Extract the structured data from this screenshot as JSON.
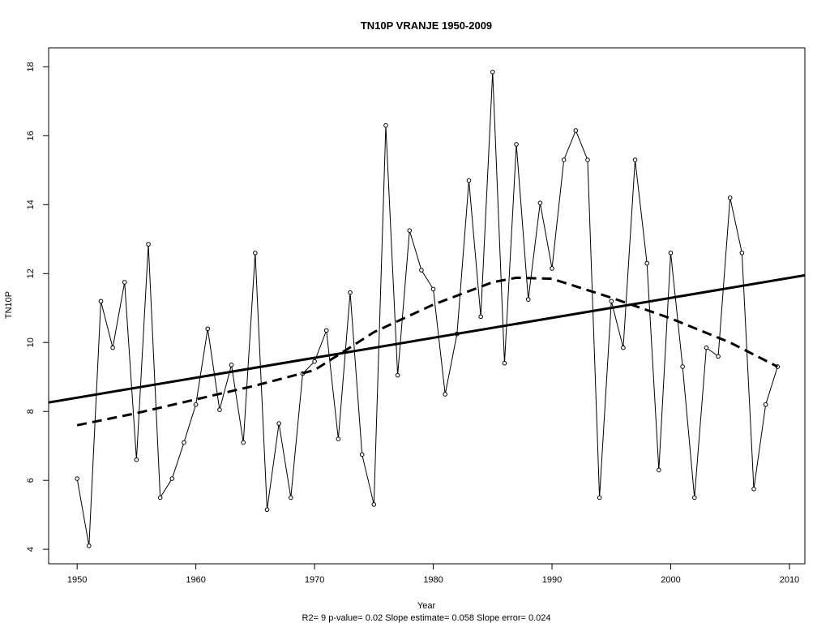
{
  "chart_data": {
    "type": "line",
    "title": "TN10P    VRANJE 1950-2009",
    "xlabel": "Year",
    "ylabel": "TN10P",
    "stats_line": "R2= 9  p-value= 0.02  Slope estimate= 0.058  Slope error= 0.024",
    "xlim": [
      1947.6,
      2011.3
    ],
    "ylim": [
      3.58,
      18.55
    ],
    "x_ticks": [
      1950,
      1960,
      1970,
      1980,
      1990,
      2000,
      2010
    ],
    "y_ticks": [
      4,
      6,
      8,
      10,
      12,
      14,
      16,
      18
    ],
    "grid": false,
    "series": [
      {
        "style": "line-with-points",
        "x": [
          1950,
          1951,
          1952,
          1953,
          1954,
          1955,
          1956,
          1957,
          1958,
          1959,
          1960,
          1961,
          1962,
          1963,
          1964,
          1965,
          1966,
          1967,
          1968,
          1969,
          1970,
          1971,
          1972,
          1973,
          1974,
          1975,
          1976,
          1977,
          1978,
          1979,
          1980,
          1981,
          1982,
          1983,
          1984,
          1985,
          1986,
          1987,
          1988,
          1989,
          1990,
          1991,
          1992,
          1993,
          1994,
          1995,
          1996,
          1997,
          1998,
          1999,
          2000,
          2001,
          2002,
          2003,
          2004,
          2005,
          2006,
          2007,
          2008,
          2009
        ],
        "values": [
          6.05,
          4.1,
          11.2,
          9.85,
          11.75,
          6.6,
          12.85,
          5.5,
          6.05,
          7.1,
          8.2,
          10.4,
          8.05,
          9.35,
          7.1,
          12.6,
          5.15,
          7.65,
          5.5,
          9.1,
          9.45,
          10.35,
          7.2,
          11.45,
          6.75,
          5.3,
          16.3,
          9.05,
          13.25,
          12.1,
          11.55,
          8.5,
          10.25,
          14.7,
          10.75,
          17.85,
          9.4,
          15.75,
          11.25,
          14.05,
          12.15,
          15.3,
          16.15,
          15.3,
          5.5,
          11.2,
          9.85,
          15.3,
          12.3,
          6.3,
          12.6,
          9.3,
          5.5,
          9.85,
          9.6,
          14.2,
          12.6,
          5.75,
          8.2,
          9.3
        ]
      },
      {
        "style": "solid-thick",
        "x": [
          1947.6,
          2011.3
        ],
        "values": [
          8.26,
          11.95
        ]
      },
      {
        "style": "dashed-thick",
        "x": [
          1950,
          1955,
          1960,
          1965,
          1970,
          1975,
          1980,
          1985,
          1987,
          1990,
          1995,
          2000,
          2005,
          2009
        ],
        "values": [
          7.6,
          7.95,
          8.35,
          8.75,
          9.2,
          10.3,
          11.1,
          11.75,
          11.88,
          11.85,
          11.3,
          10.7,
          10.0,
          9.3
        ]
      }
    ]
  }
}
